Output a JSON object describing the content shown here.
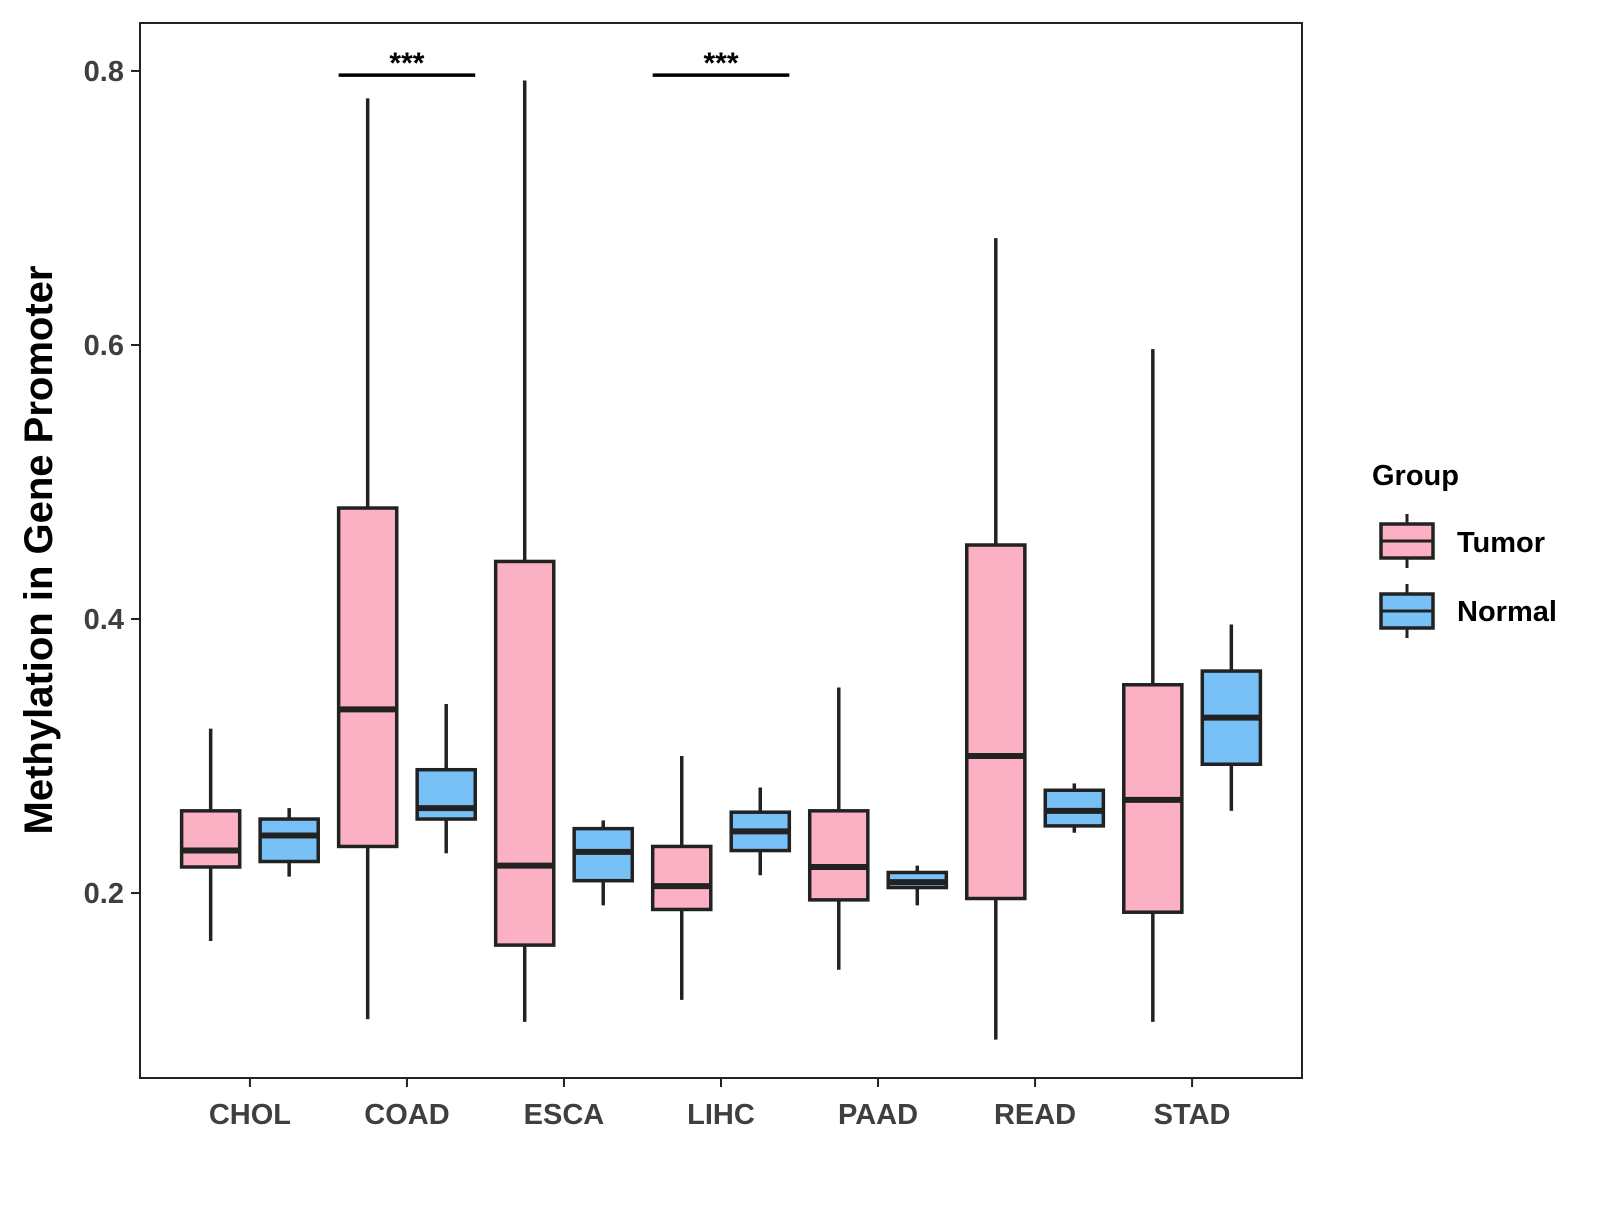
{
  "chart_data": {
    "type": "boxplot",
    "title": "",
    "xlabel": "",
    "ylabel": "Methylation in Gene Promoter",
    "ylim": [
      0.065,
      0.835
    ],
    "yticks": [
      0.2,
      0.4,
      0.6,
      0.8
    ],
    "ytick_labels": [
      "0.2",
      "0.4",
      "0.6",
      "0.8"
    ],
    "grid": false,
    "legend_position": "right",
    "categories": [
      "CHOL",
      "COAD",
      "ESCA",
      "LIHC",
      "PAAD",
      "READ",
      "STAD"
    ],
    "legend": {
      "title": "Group",
      "entries": [
        "Tumor",
        "Normal"
      ]
    },
    "colors": {
      "Tumor": "#fbb0c3",
      "Normal": "#78c1f7",
      "outline": "#222222"
    },
    "series": [
      {
        "name": "Tumor",
        "boxes": [
          {
            "category": "CHOL",
            "min": 0.165,
            "q1": 0.219,
            "median": 0.231,
            "q3": 0.26,
            "max": 0.32
          },
          {
            "category": "COAD",
            "min": 0.108,
            "q1": 0.234,
            "median": 0.334,
            "q3": 0.481,
            "max": 0.78
          },
          {
            "category": "ESCA",
            "min": 0.106,
            "q1": 0.162,
            "median": 0.22,
            "q3": 0.442,
            "max": 0.793
          },
          {
            "category": "LIHC",
            "min": 0.122,
            "q1": 0.188,
            "median": 0.205,
            "q3": 0.234,
            "max": 0.3
          },
          {
            "category": "PAAD",
            "min": 0.144,
            "q1": 0.195,
            "median": 0.219,
            "q3": 0.26,
            "max": 0.35
          },
          {
            "category": "READ",
            "min": 0.093,
            "q1": 0.196,
            "median": 0.3,
            "q3": 0.454,
            "max": 0.678
          },
          {
            "category": "STAD",
            "min": 0.106,
            "q1": 0.186,
            "median": 0.268,
            "q3": 0.352,
            "max": 0.597
          }
        ]
      },
      {
        "name": "Normal",
        "boxes": [
          {
            "category": "CHOL",
            "min": 0.212,
            "q1": 0.223,
            "median": 0.242,
            "q3": 0.254,
            "max": 0.262
          },
          {
            "category": "COAD",
            "min": 0.229,
            "q1": 0.254,
            "median": 0.262,
            "q3": 0.29,
            "max": 0.338
          },
          {
            "category": "ESCA",
            "min": 0.191,
            "q1": 0.209,
            "median": 0.23,
            "q3": 0.247,
            "max": 0.253
          },
          {
            "category": "LIHC",
            "min": 0.213,
            "q1": 0.231,
            "median": 0.245,
            "q3": 0.259,
            "max": 0.277
          },
          {
            "category": "PAAD",
            "min": 0.191,
            "q1": 0.204,
            "median": 0.208,
            "q3": 0.215,
            "max": 0.22
          },
          {
            "category": "READ",
            "min": 0.244,
            "q1": 0.249,
            "median": 0.26,
            "q3": 0.275,
            "max": 0.28
          },
          {
            "category": "STAD",
            "min": 0.26,
            "q1": 0.294,
            "median": 0.328,
            "q3": 0.362,
            "max": 0.396
          }
        ]
      }
    ],
    "annotations": [
      {
        "category": "COAD",
        "label": "***",
        "y": 0.797
      },
      {
        "category": "LIHC",
        "label": "***",
        "y": 0.797
      }
    ]
  }
}
